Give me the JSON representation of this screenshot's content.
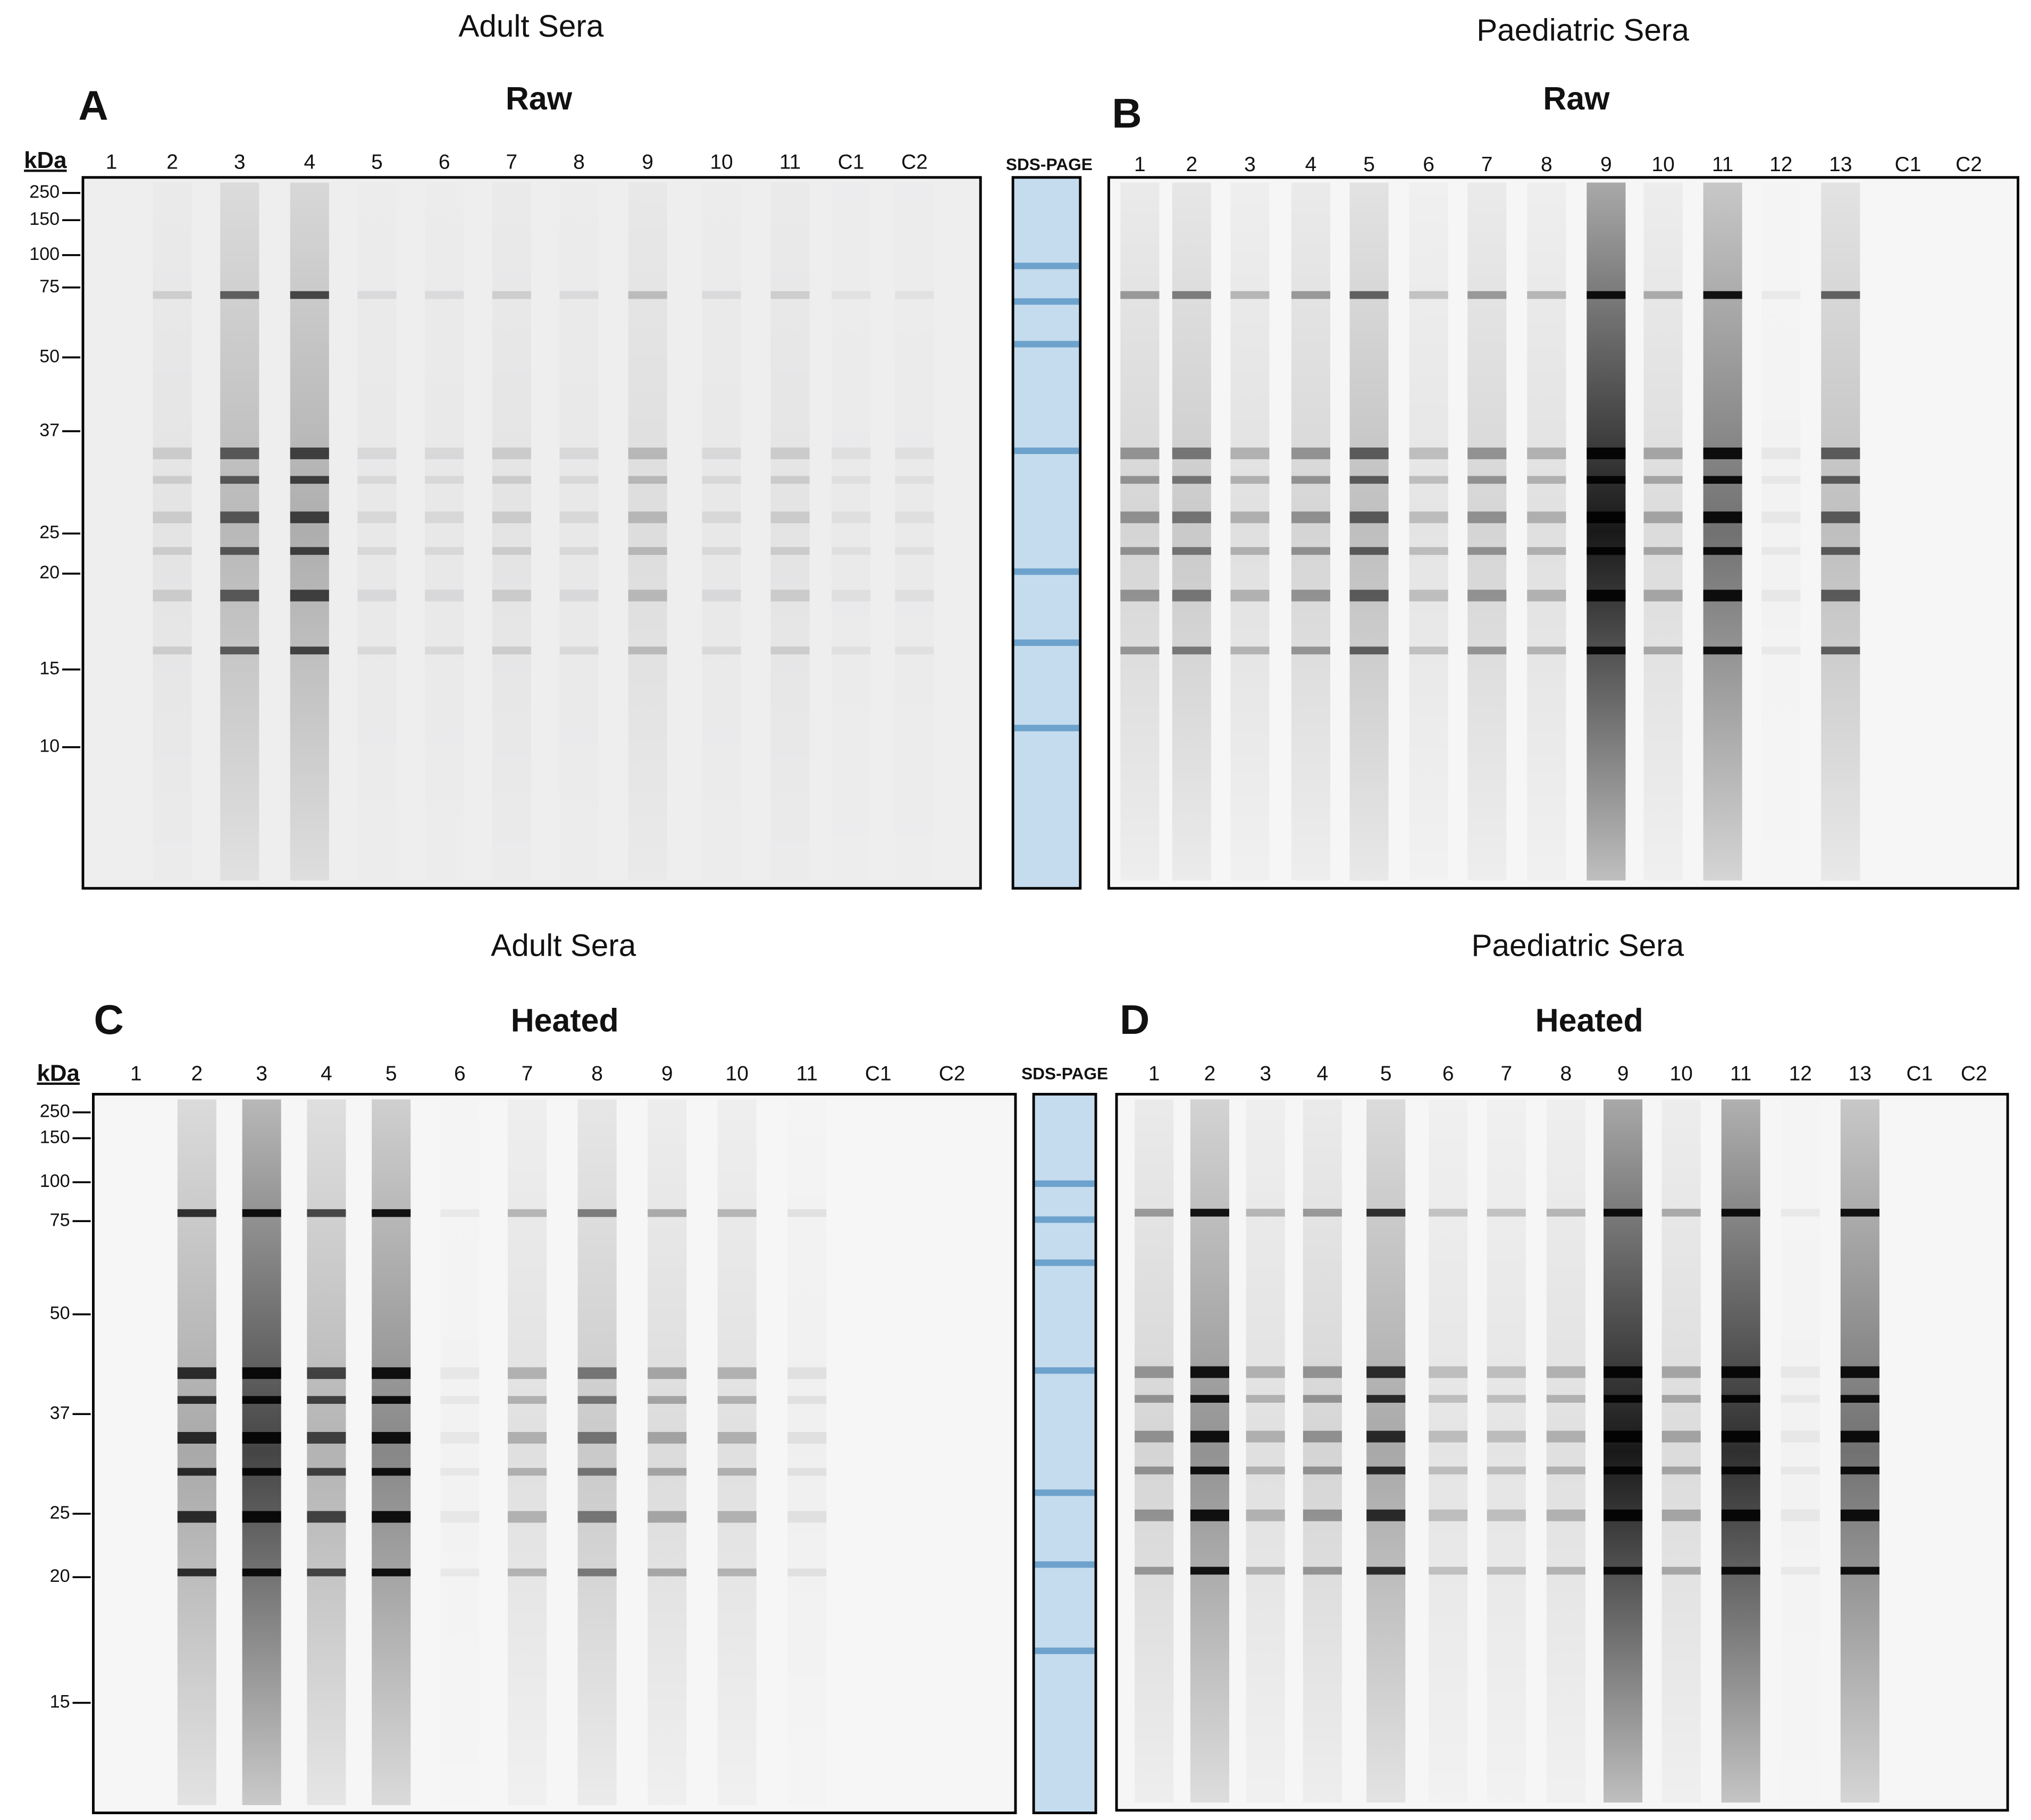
{
  "panels": [
    {
      "group_title": "Adult Sera",
      "letter": "A",
      "condition": "Raw",
      "mw_unit": "kDa",
      "mw_markers": [
        250,
        150,
        100,
        75,
        50,
        37,
        25,
        20,
        15,
        10
      ],
      "lanes": [
        "1",
        "2",
        "3",
        "4",
        "5",
        "6",
        "7",
        "8",
        "9",
        "10",
        "11",
        "C1",
        "C2"
      ],
      "stain_label": "SDS-PAGE"
    },
    {
      "group_title": "Paediatric Sera",
      "letter": "B",
      "condition": "Raw",
      "lanes": [
        "1",
        "2",
        "3",
        "4",
        "5",
        "6",
        "7",
        "8",
        "9",
        "10",
        "11",
        "12",
        "13",
        "C1",
        "C2"
      ]
    },
    {
      "group_title": "Adult Sera",
      "letter": "C",
      "condition": "Heated",
      "mw_unit": "kDa",
      "mw_markers": [
        250,
        150,
        100,
        75,
        50,
        37,
        25,
        20,
        15
      ],
      "lanes": [
        "1",
        "2",
        "3",
        "4",
        "5",
        "6",
        "7",
        "8",
        "9",
        "10",
        "11",
        "C1",
        "C2"
      ],
      "stain_label": "SDS-PAGE"
    },
    {
      "group_title": "Paediatric Sera",
      "letter": "D",
      "condition": "Heated",
      "lanes": [
        "1",
        "2",
        "3",
        "4",
        "5",
        "6",
        "7",
        "8",
        "9",
        "10",
        "11",
        "12",
        "13",
        "C1",
        "C2"
      ]
    }
  ]
}
